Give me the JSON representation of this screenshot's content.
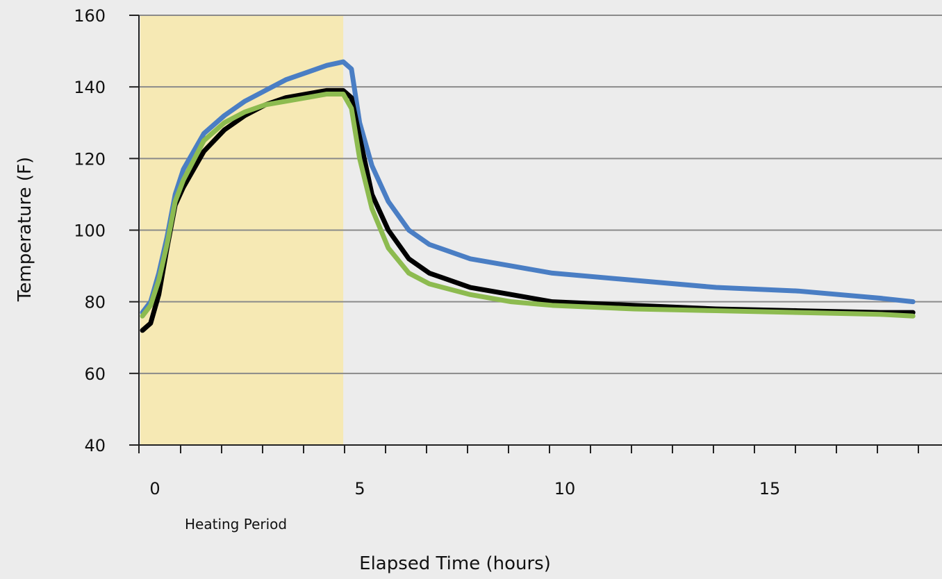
{
  "chart_data": {
    "type": "line",
    "xlabel": "Elapsed Time (hours)",
    "ylabel": "Temperature (F)",
    "xlim": [
      0,
      18.8
    ],
    "ylim": [
      40,
      160
    ],
    "yticks": [
      40,
      60,
      80,
      100,
      120,
      140,
      160
    ],
    "xtick_labels": [
      {
        "value": 0,
        "label": "0"
      },
      {
        "value": 5,
        "label": "5"
      },
      {
        "value": 10,
        "label": "10"
      },
      {
        "value": 15,
        "label": "15"
      }
    ],
    "minor_tick_step": 1,
    "grid": true,
    "legend": "none",
    "shaded_region": {
      "x_start": 0,
      "x_end": 4.9,
      "label": "Heating Period",
      "color": "#f6e9b4"
    },
    "colors": {
      "background": "#ececec",
      "grid": "#8a8a8a",
      "axis": "#222222"
    },
    "series": [
      {
        "color": "#4a7ec4",
        "x": [
          0,
          0.2,
          0.4,
          0.6,
          0.8,
          1.0,
          1.5,
          2.0,
          2.5,
          3.0,
          3.5,
          4.0,
          4.5,
          4.9,
          5.1,
          5.3,
          5.6,
          6.0,
          6.5,
          7.0,
          8.0,
          9.0,
          10.0,
          12.0,
          14.0,
          16.0,
          18.0,
          18.8
        ],
        "y": [
          77,
          80,
          88,
          98,
          110,
          117,
          127,
          132,
          136,
          139,
          142,
          144,
          146,
          147,
          145,
          130,
          118,
          108,
          100,
          96,
          92,
          90,
          88,
          86,
          84,
          83,
          81,
          80
        ]
      },
      {
        "color": "#000000",
        "x": [
          0,
          0.2,
          0.4,
          0.6,
          0.8,
          1.0,
          1.5,
          2.0,
          2.5,
          3.0,
          3.5,
          4.0,
          4.5,
          4.9,
          5.1,
          5.3,
          5.6,
          6.0,
          6.5,
          7.0,
          8.0,
          9.0,
          10.0,
          12.0,
          14.0,
          16.0,
          18.0,
          18.8
        ],
        "y": [
          72,
          74,
          82,
          95,
          107,
          112,
          122,
          128,
          132,
          135,
          137,
          138,
          139,
          139,
          137,
          126,
          110,
          100,
          92,
          88,
          84,
          82,
          80,
          79,
          78,
          77.5,
          77,
          77
        ]
      },
      {
        "color": "#8dbb50",
        "x": [
          0,
          0.2,
          0.4,
          0.6,
          0.8,
          1.0,
          1.5,
          2.0,
          2.5,
          3.0,
          3.5,
          4.0,
          4.5,
          4.9,
          5.1,
          5.3,
          5.6,
          6.0,
          6.5,
          7.0,
          8.0,
          9.0,
          10.0,
          12.0,
          14.0,
          16.0,
          18.0,
          18.8
        ],
        "y": [
          76,
          79,
          86,
          96,
          108,
          114,
          125,
          130,
          133,
          135,
          136,
          137,
          138,
          138,
          134,
          120,
          106,
          95,
          88,
          85,
          82,
          80,
          79,
          78,
          77.5,
          77,
          76.5,
          76
        ]
      }
    ]
  }
}
